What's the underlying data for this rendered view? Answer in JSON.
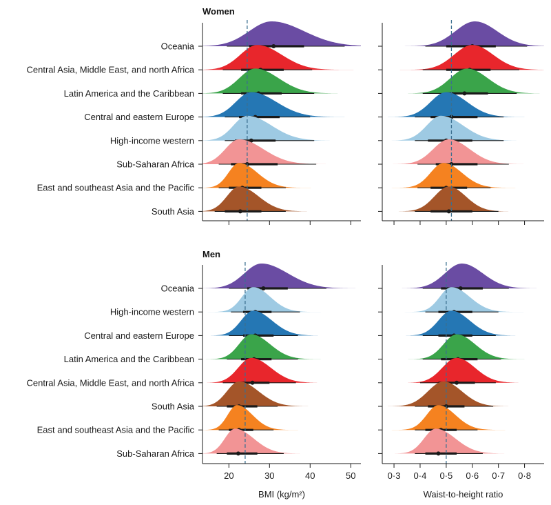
{
  "colors": {
    "Oceania": "#6a4ca3",
    "Central Asia, Middle East, and north Africa": "#e8262c",
    "Latin America and the Caribbean": "#3aa44a",
    "Central and eastern Europe": "#2577b4",
    "High-income western": "#9ecae3",
    "Sub-Saharan Africa": "#f29495",
    "East and southeast Asia and the Pacific": "#f58220",
    "South Asia": "#a45529"
  },
  "chart_data": [
    {
      "type": "area",
      "title": "Women",
      "xlabel": "BMI (kg/m²)",
      "xlim": [
        13.5,
        52.5
      ],
      "xticks": [
        20,
        30,
        40,
        50
      ],
      "ref_line": 24.5,
      "rows": [
        {
          "name": "Oceania",
          "mode": 30.5,
          "sdl": 5.5,
          "sdr": 8.0,
          "amp": 1.0,
          "median": 31.0,
          "wl": 19.5,
          "wr": 48.5,
          "tl": 25.0,
          "tr": 38.5
        },
        {
          "name": "Central Asia, Middle East, and north Africa",
          "mode": 27.0,
          "sdl": 4.2,
          "sdr": 6.0,
          "amp": 1.0,
          "median": 27.8,
          "wl": 18.5,
          "wr": 40.5,
          "tl": 23.0,
          "tr": 33.5
        },
        {
          "name": "Latin America and the Caribbean",
          "mode": 26.5,
          "sdl": 4.0,
          "sdr": 5.8,
          "amp": 1.0,
          "median": 27.3,
          "wl": 18.5,
          "wr": 41.0,
          "tl": 23.0,
          "tr": 33.0
        },
        {
          "name": "Central and eastern Europe",
          "mode": 25.5,
          "sdl": 3.8,
          "sdr": 6.2,
          "amp": 1.0,
          "median": 26.5,
          "wl": 19.0,
          "wr": 40.0,
          "tl": 22.5,
          "tr": 32.5
        },
        {
          "name": "High-income western",
          "mode": 24.5,
          "sdl": 3.4,
          "sdr": 6.0,
          "amp": 1.0,
          "median": 25.5,
          "wl": 19.0,
          "wr": 41.0,
          "tl": 21.5,
          "tr": 31.5
        },
        {
          "name": "Sub-Saharan Africa",
          "mode": 22.5,
          "sdl": 3.4,
          "sdr": 6.0,
          "amp": 1.0,
          "median": 24.5,
          "wl": 17.5,
          "wr": 41.5,
          "tl": 20.5,
          "tr": 32.0
        },
        {
          "name": "East and southeast Asia and the Pacific",
          "mode": 22.5,
          "sdl": 2.6,
          "sdr": 4.5,
          "amp": 1.0,
          "median": 23.3,
          "wl": 17.5,
          "wr": 34.0,
          "tl": 20.0,
          "tr": 28.0
        },
        {
          "name": "South Asia",
          "mode": 22.5,
          "sdl": 3.0,
          "sdr": 4.8,
          "amp": 1.0,
          "median": 22.8,
          "wl": 16.5,
          "wr": 34.0,
          "tl": 19.0,
          "tr": 28.0
        }
      ]
    },
    {
      "type": "area",
      "title": "",
      "xlabel": "",
      "xlim": [
        0.255,
        0.875
      ],
      "xticks": [
        0.3,
        0.4,
        0.5,
        0.6,
        0.7,
        0.8
      ],
      "ref_line": 0.52,
      "rows": [
        {
          "name": "Oceania",
          "mode": 0.61,
          "sdl": 0.075,
          "sdr": 0.085,
          "amp": 1.0,
          "median": 0.6,
          "wl": 0.42,
          "wr": 0.81,
          "tl": 0.5,
          "tr": 0.69
        },
        {
          "name": "Central Asia, Middle East, and north Africa",
          "mode": 0.6,
          "sdl": 0.07,
          "sdr": 0.08,
          "amp": 1.0,
          "median": 0.59,
          "wl": 0.41,
          "wr": 0.78,
          "tl": 0.5,
          "tr": 0.67
        },
        {
          "name": "Latin America and the Caribbean",
          "mode": 0.58,
          "sdl": 0.065,
          "sdr": 0.08,
          "amp": 1.0,
          "median": 0.57,
          "wl": 0.41,
          "wr": 0.77,
          "tl": 0.5,
          "tr": 0.66
        },
        {
          "name": "Central and eastern Europe",
          "mode": 0.5,
          "sdl": 0.06,
          "sdr": 0.08,
          "amp": 1.0,
          "median": 0.52,
          "wl": 0.38,
          "wr": 0.72,
          "tl": 0.44,
          "tr": 0.62
        },
        {
          "name": "High-income western",
          "mode": 0.48,
          "sdl": 0.055,
          "sdr": 0.085,
          "amp": 1.0,
          "median": 0.5,
          "wl": 0.38,
          "wr": 0.72,
          "tl": 0.43,
          "tr": 0.6
        },
        {
          "name": "Sub-Saharan Africa",
          "mode": 0.51,
          "sdl": 0.06,
          "sdr": 0.08,
          "amp": 1.0,
          "median": 0.52,
          "wl": 0.39,
          "wr": 0.74,
          "tl": 0.46,
          "tr": 0.62
        },
        {
          "name": "East and southeast Asia and the Pacific",
          "mode": 0.49,
          "sdl": 0.05,
          "sdr": 0.07,
          "amp": 1.0,
          "median": 0.5,
          "wl": 0.39,
          "wr": 0.67,
          "tl": 0.44,
          "tr": 0.58
        },
        {
          "name": "South Asia",
          "mode": 0.51,
          "sdl": 0.055,
          "sdr": 0.065,
          "amp": 1.0,
          "median": 0.51,
          "wl": 0.38,
          "wr": 0.7,
          "tl": 0.44,
          "tr": 0.6
        }
      ]
    },
    {
      "type": "area",
      "title": "Men",
      "xlabel": "BMI (kg/m²)",
      "xlim": [
        13.5,
        52.5
      ],
      "xticks": [
        20,
        30,
        40,
        50
      ],
      "ref_line": 24.0,
      "rows": [
        {
          "name": "Oceania",
          "mode": 28.0,
          "sdl": 4.2,
          "sdr": 6.5,
          "amp": 1.0,
          "median": 28.5,
          "wl": 20.0,
          "wr": 44.0,
          "tl": 24.5,
          "tr": 34.5
        },
        {
          "name": "High-income western",
          "mode": 26.0,
          "sdl": 2.8,
          "sdr": 4.2,
          "amp": 1.0,
          "median": 26.5,
          "wl": 20.5,
          "wr": 37.5,
          "tl": 23.5,
          "tr": 30.5
        },
        {
          "name": "Central and eastern Europe",
          "mode": 26.0,
          "sdl": 3.0,
          "sdr": 4.6,
          "amp": 1.0,
          "median": 26.5,
          "wl": 20.0,
          "wr": 37.0,
          "tl": 23.5,
          "tr": 31.0
        },
        {
          "name": "Latin America and the Caribbean",
          "mode": 25.5,
          "sdl": 3.0,
          "sdr": 4.6,
          "amp": 1.0,
          "median": 26.2,
          "wl": 19.5,
          "wr": 37.0,
          "tl": 23.0,
          "tr": 30.5
        },
        {
          "name": "Central Asia, Middle East, and north Africa",
          "mode": 25.5,
          "sdl": 3.2,
          "sdr": 4.8,
          "amp": 1.0,
          "median": 25.8,
          "wl": 18.5,
          "wr": 36.5,
          "tl": 22.5,
          "tr": 30.0
        },
        {
          "name": "South Asia",
          "mode": 22.5,
          "sdl": 3.0,
          "sdr": 4.8,
          "amp": 1.0,
          "median": 22.5,
          "wl": 17.0,
          "wr": 32.0,
          "tl": 19.5,
          "tr": 27.0
        },
        {
          "name": "East and southeast Asia and the Pacific",
          "mode": 22.0,
          "sdl": 2.3,
          "sdr": 3.8,
          "amp": 1.0,
          "median": 22.5,
          "wl": 17.5,
          "wr": 31.0,
          "tl": 20.0,
          "tr": 26.0
        },
        {
          "name": "Sub-Saharan Africa",
          "mode": 21.5,
          "sdl": 2.5,
          "sdr": 4.6,
          "amp": 1.0,
          "median": 22.3,
          "wl": 17.0,
          "wr": 33.5,
          "tl": 19.5,
          "tr": 27.0
        }
      ]
    },
    {
      "type": "area",
      "title": "",
      "xlabel": "Waist-to-height ratio",
      "xlim": [
        0.255,
        0.875
      ],
      "xticks": [
        0.3,
        0.4,
        0.5,
        0.6,
        0.7,
        0.8
      ],
      "ref_line": 0.5,
      "rows": [
        {
          "name": "Oceania",
          "mode": 0.56,
          "sdl": 0.065,
          "sdr": 0.08,
          "amp": 1.0,
          "median": 0.555,
          "wl": 0.41,
          "wr": 0.74,
          "tl": 0.48,
          "tr": 0.64
        },
        {
          "name": "High-income western",
          "mode": 0.52,
          "sdl": 0.045,
          "sdr": 0.07,
          "amp": 1.0,
          "median": 0.53,
          "wl": 0.42,
          "wr": 0.7,
          "tl": 0.47,
          "tr": 0.6
        },
        {
          "name": "Central and eastern Europe",
          "mode": 0.52,
          "sdl": 0.05,
          "sdr": 0.07,
          "amp": 1.0,
          "median": 0.53,
          "wl": 0.41,
          "wr": 0.69,
          "tl": 0.47,
          "tr": 0.6
        },
        {
          "name": "Latin America and the Caribbean",
          "mode": 0.54,
          "sdl": 0.05,
          "sdr": 0.07,
          "amp": 1.0,
          "median": 0.545,
          "wl": 0.41,
          "wr": 0.71,
          "tl": 0.48,
          "tr": 0.62
        },
        {
          "name": "Central Asia, Middle East, and north Africa",
          "mode": 0.54,
          "sdl": 0.055,
          "sdr": 0.07,
          "amp": 1.0,
          "median": 0.54,
          "wl": 0.4,
          "wr": 0.69,
          "tl": 0.47,
          "tr": 0.61
        },
        {
          "name": "South Asia",
          "mode": 0.49,
          "sdl": 0.06,
          "sdr": 0.07,
          "amp": 1.0,
          "median": 0.5,
          "wl": 0.38,
          "wr": 0.68,
          "tl": 0.43,
          "tr": 0.57
        },
        {
          "name": "East and southeast Asia and the Pacific",
          "mode": 0.47,
          "sdl": 0.045,
          "sdr": 0.065,
          "amp": 1.0,
          "median": 0.48,
          "wl": 0.38,
          "wr": 0.62,
          "tl": 0.42,
          "tr": 0.54
        },
        {
          "name": "Sub-Saharan Africa",
          "mode": 0.46,
          "sdl": 0.045,
          "sdr": 0.075,
          "amp": 1.0,
          "median": 0.47,
          "wl": 0.38,
          "wr": 0.64,
          "tl": 0.42,
          "tr": 0.54
        }
      ]
    }
  ]
}
